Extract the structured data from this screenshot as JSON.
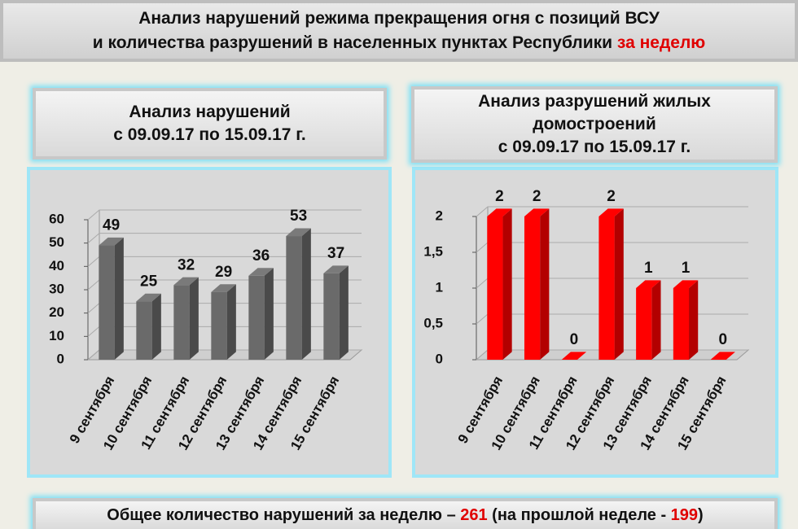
{
  "header": {
    "title_line1": "Анализ нарушений режима прекращения огня с позиций ВСУ",
    "title_line2": "и количества разрушений в населенных пунктах Республики",
    "title_highlight": "за неделю"
  },
  "chart_data": [
    {
      "type": "bar3d",
      "title": "Анализ нарушений",
      "subtitle": "с 09.09.17 по 15.09.17 г.",
      "categories": [
        "9 сентября",
        "10 сентября",
        "11 сентября",
        "12 сентября",
        "13 сентября",
        "14 сентября",
        "15 сентября"
      ],
      "values": [
        49,
        25,
        32,
        29,
        36,
        53,
        37
      ],
      "color": "#6a6a6a",
      "ylim": [
        0,
        60
      ],
      "yticks": [
        0,
        10,
        20,
        30,
        40,
        50,
        60
      ],
      "grid": true
    },
    {
      "type": "bar3d",
      "title": "Анализ разрушений жилых домостроений",
      "subtitle": "с 09.09.17 по 15.09.17 г.",
      "categories": [
        "9 сентября",
        "10 сентября",
        "11 сентября",
        "12 сентября",
        "13 сентября",
        "14 сентября",
        "15 сентября"
      ],
      "values": [
        2,
        2,
        0,
        2,
        1,
        1,
        0
      ],
      "color": "#ff0000",
      "ylim": [
        0,
        2
      ],
      "yticks": [
        0,
        {
          "value": 0.5,
          "label": "0,5"
        },
        1,
        {
          "value": 1.5,
          "label": "1,5"
        },
        2
      ],
      "grid": true
    }
  ],
  "footer": {
    "text1": "Общее количество нарушений за неделю – ",
    "total": "261",
    "text2": " (на прошлой неделе - ",
    "previous": "199",
    "text3": ")"
  }
}
